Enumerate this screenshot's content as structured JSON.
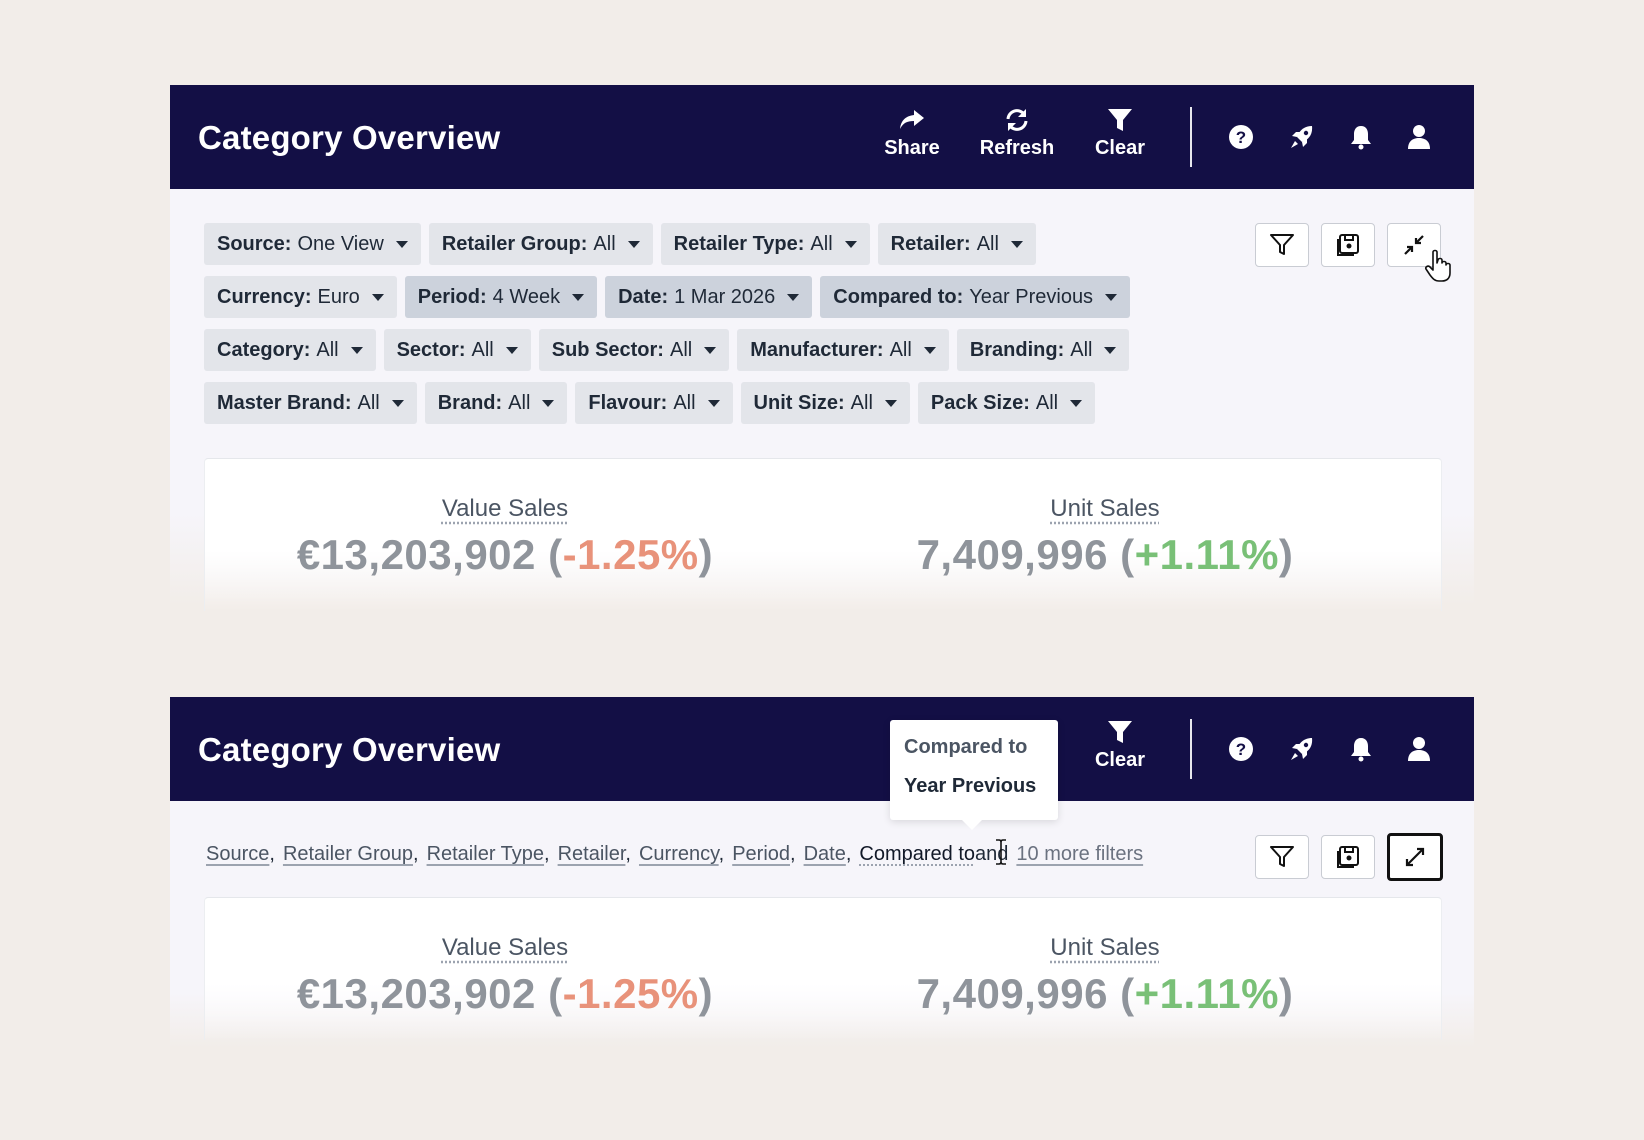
{
  "app": {
    "title": "Category Overview",
    "actions": {
      "share": "Share",
      "refresh": "Refresh",
      "clear": "Clear"
    }
  },
  "filters": {
    "rows": [
      [
        {
          "label": "Source:",
          "value": "One View"
        },
        {
          "label": "Retailer Group:",
          "value": "All"
        },
        {
          "label": "Retailer Type:",
          "value": "All"
        },
        {
          "label": "Retailer:",
          "value": "All"
        }
      ],
      [
        {
          "label": "Currency:",
          "value": "Euro"
        },
        {
          "label": "Period:",
          "value": "4 Week"
        },
        {
          "label": "Date:",
          "value": "1 Mar 2026"
        },
        {
          "label": "Compared to:",
          "value": "Year Previous"
        }
      ],
      [
        {
          "label": "Category:",
          "value": "All"
        },
        {
          "label": "Sector:",
          "value": "All"
        },
        {
          "label": "Sub Sector:",
          "value": "All"
        },
        {
          "label": "Manufacturer:",
          "value": "All"
        },
        {
          "label": "Branding:",
          "value": "All"
        }
      ],
      [
        {
          "label": "Master Brand:",
          "value": "All"
        },
        {
          "label": "Brand:",
          "value": "All"
        },
        {
          "label": "Flavour:",
          "value": "All"
        },
        {
          "label": "Unit Size:",
          "value": "All"
        },
        {
          "label": "Pack Size:",
          "value": "All"
        }
      ]
    ]
  },
  "metrics": {
    "value_sales": {
      "label": "Value Sales",
      "value": "€13,203,902",
      "change": "-1.25%",
      "open": "(",
      "close": ")"
    },
    "unit_sales": {
      "label": "Unit Sales",
      "value": "7,409,996",
      "change": "+1.11%",
      "open": "(",
      "close": ")"
    }
  },
  "summary": {
    "items": [
      "Source",
      "Retailer Group",
      "Retailer Type",
      "Retailer",
      "Currency",
      "Period",
      "Date"
    ],
    "separator": ",",
    "last": "Compared to",
    "and": "and",
    "more": "10 more filters"
  },
  "tooltip": {
    "title": "Compared to",
    "value": "Year Previous"
  },
  "colors": {
    "header": "#130f45",
    "negative": "#e8927a",
    "positive": "#79c077"
  }
}
